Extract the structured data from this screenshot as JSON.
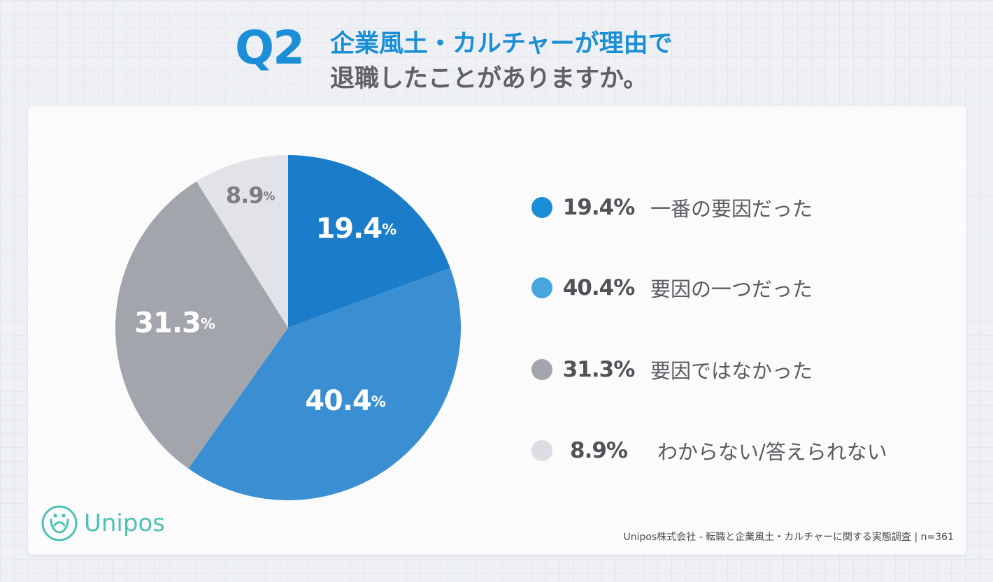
{
  "header": {
    "q_label": "Q2",
    "title_line1": "企業風土・カルチャーが理由で",
    "title_line2": "退職したことがありますか。"
  },
  "chart_data": {
    "type": "pie",
    "title": "企業風土・カルチャーが理由で退職したことがありますか。",
    "unit": "%",
    "slices": [
      {
        "label": "一番の要因だった",
        "value": 19.4,
        "pct_text": "19.4%",
        "num_text": "19.4",
        "color": "#1b7dc9",
        "label_color": "#ffffff"
      },
      {
        "label": "要因の一つだった",
        "value": 40.4,
        "pct_text": "40.4%",
        "num_text": "40.4",
        "color": "#3a8fd2",
        "label_color": "#ffffff"
      },
      {
        "label": "要因ではなかった",
        "value": 31.3,
        "pct_text": "31.3%",
        "num_text": "31.3",
        "color": "#a3a5ad",
        "label_color": "#ffffff"
      },
      {
        "label": "わからない/答えられない",
        "value": 8.9,
        "pct_text": "8.9%",
        "num_text": "8.9",
        "color": "#e2e3e8",
        "label_color": "#7b7d83"
      }
    ],
    "legend_colors": [
      "#1a8ed6",
      "#47a6e0",
      "#a3a5ad",
      "#dcdde2"
    ]
  },
  "footer": {
    "logo_text": "Unipos",
    "source": "Unipos株式会社 - 転職と企業風土・カルチャーに関する実態調査 | n=361"
  }
}
